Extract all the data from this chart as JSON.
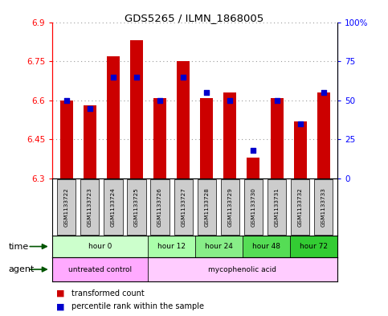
{
  "title": "GDS5265 / ILMN_1868005",
  "samples": [
    "GSM1133722",
    "GSM1133723",
    "GSM1133724",
    "GSM1133725",
    "GSM1133726",
    "GSM1133727",
    "GSM1133728",
    "GSM1133729",
    "GSM1133730",
    "GSM1133731",
    "GSM1133732",
    "GSM1133733"
  ],
  "transformed_count": [
    6.6,
    6.58,
    6.77,
    6.83,
    6.61,
    6.75,
    6.61,
    6.63,
    6.38,
    6.61,
    6.52,
    6.63
  ],
  "percentile_rank": [
    50,
    45,
    65,
    65,
    50,
    65,
    55,
    50,
    18,
    50,
    35,
    55
  ],
  "bar_bottom": 6.3,
  "ylim_left": [
    6.3,
    6.9
  ],
  "ylim_right": [
    0,
    100
  ],
  "yticks_left": [
    6.3,
    6.45,
    6.6,
    6.75,
    6.9
  ],
  "yticks_right": [
    0,
    25,
    50,
    75,
    100
  ],
  "ytick_labels_right": [
    "0",
    "25",
    "50",
    "75",
    "100%"
  ],
  "bar_color": "#cc0000",
  "dot_color": "#0000cc",
  "time_groups": [
    {
      "label": "hour 0",
      "start": 0,
      "end": 3,
      "color": "#ccffcc"
    },
    {
      "label": "hour 12",
      "start": 4,
      "end": 5,
      "color": "#aaffaa"
    },
    {
      "label": "hour 24",
      "start": 6,
      "end": 7,
      "color": "#88ee88"
    },
    {
      "label": "hour 48",
      "start": 8,
      "end": 9,
      "color": "#55dd55"
    },
    {
      "label": "hour 72",
      "start": 10,
      "end": 11,
      "color": "#33cc33"
    }
  ],
  "agent_groups": [
    {
      "label": "untreated control",
      "start": 0,
      "end": 3,
      "color": "#ffaaff"
    },
    {
      "label": "mycophenolic acid",
      "start": 4,
      "end": 11,
      "color": "#ffccff"
    }
  ],
  "legend_bar_label": "transformed count",
  "legend_dot_label": "percentile rank within the sample",
  "sample_box_color": "#cccccc",
  "xlabel_time": "time",
  "xlabel_agent": "agent",
  "arrow_color": "#005500",
  "grid_color": "#999999",
  "bg_color": "#ffffff"
}
